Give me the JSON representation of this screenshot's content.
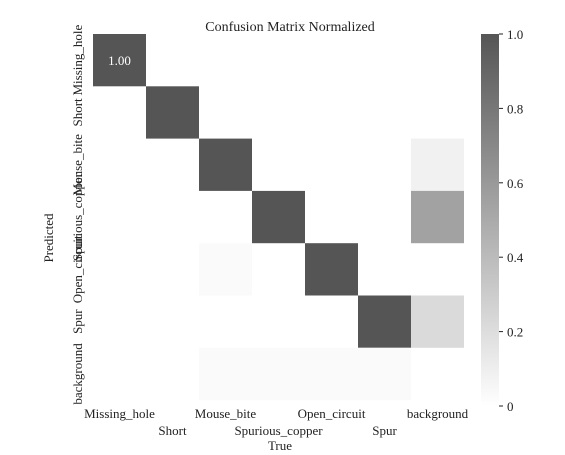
{
  "chart_data": {
    "type": "heatmap",
    "title": "Confusion Matrix Normalized",
    "xlabel": "True",
    "ylabel": "Predicted",
    "x_categories": [
      "Missing_hole",
      "Short",
      "Mouse_bite",
      "Spurious_copper",
      "Open_circuit",
      "Spur",
      "background"
    ],
    "y_categories": [
      "Missing_hole",
      "Short",
      "Mouse_bite",
      "Spurious_copper",
      "Open_circuit",
      "Spur",
      "background"
    ],
    "values": [
      [
        1.0,
        0.0,
        0.0,
        0.0,
        0.0,
        0.0,
        0.0
      ],
      [
        0.0,
        1.0,
        0.0,
        0.0,
        0.0,
        0.0,
        0.0
      ],
      [
        0.0,
        0.0,
        1.0,
        0.0,
        0.0,
        0.0,
        0.08
      ],
      [
        0.0,
        0.0,
        0.0,
        1.0,
        0.0,
        0.0,
        0.55
      ],
      [
        0.0,
        0.0,
        0.03,
        0.0,
        1.0,
        0.0,
        0.0
      ],
      [
        0.0,
        0.0,
        0.0,
        0.0,
        0.0,
        1.0,
        0.22
      ],
      [
        0.0,
        0.0,
        0.03,
        0.03,
        0.03,
        0.03,
        0.0
      ]
    ],
    "annotations": [
      {
        "row": 0,
        "col": 0,
        "text": "1.00"
      }
    ],
    "colorbar": {
      "min": 0,
      "max": 1.0,
      "ticks": [
        "0",
        "0.2",
        "0.4",
        "0.6",
        "0.8",
        "1.0"
      ]
    },
    "colors": {
      "low": "#ffffff",
      "high": "#555555"
    }
  }
}
